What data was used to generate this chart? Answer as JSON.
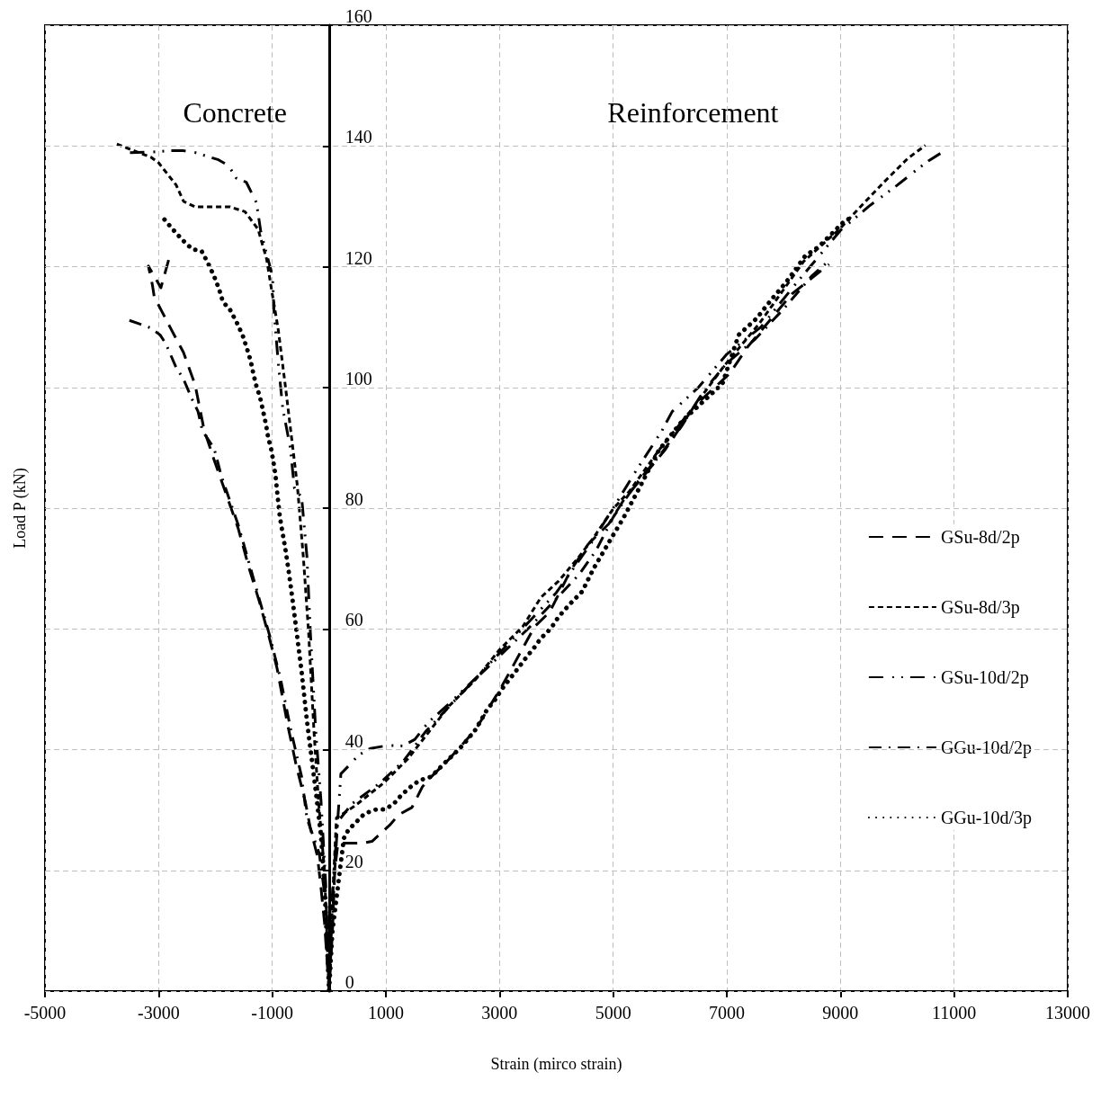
{
  "chart_data": {
    "type": "line",
    "xlabel": "Strain (mirco strain)",
    "ylabel": "Load P (kN)",
    "annotations": [
      "Concrete",
      "Reinforcement"
    ],
    "xlim": [
      -5000,
      13000
    ],
    "xticks": [
      -5000,
      -3000,
      -1000,
      1000,
      3000,
      5000,
      7000,
      9000,
      11000,
      13000
    ],
    "ylim": [
      0,
      160
    ],
    "yticks": [
      0,
      20,
      40,
      60,
      80,
      100,
      120,
      140,
      160
    ],
    "grid": true,
    "legend": "right",
    "marker": "none",
    "series": [
      {
        "name": "GSu-8d/2p",
        "color": "#000000",
        "line_style": "dashed",
        "x": [
          -2824,
          -2960,
          -3180,
          -3110,
          -3077,
          -2800,
          -2563,
          -2357,
          -2200,
          -2031,
          -1814,
          -1598,
          -1412,
          -1226,
          -1040,
          -916,
          -731,
          -576,
          -421,
          -328,
          -204,
          -142,
          -80,
          0,
          60,
          100,
          156,
          573,
          755,
          1068,
          1224,
          1458,
          1640,
          1745,
          2110,
          2578,
          3047,
          3620,
          3883,
          4247,
          4558,
          4922,
          5182,
          5909,
          6429,
          7052,
          7365,
          8148,
          8800
        ],
        "values": [
          121.1,
          116.5,
          120.1,
          117,
          115,
          110,
          105.8,
          100.4,
          93,
          88.2,
          82.4,
          76.6,
          70.2,
          64.5,
          58.1,
          53.5,
          44.2,
          37.3,
          31.5,
          26.9,
          22.3,
          17.1,
          11.3,
          0,
          10,
          20,
          24.5,
          24.5,
          24.8,
          27.5,
          29.2,
          30.4,
          33.8,
          35,
          38.4,
          43.3,
          50.6,
          60.4,
          62.8,
          69.6,
          74,
          77.4,
          81.3,
          89.6,
          96.9,
          102.3,
          106.7,
          115.5,
          120.4
        ]
      },
      {
        "name": "GSu-8d/3p",
        "color": "#000000",
        "line_style": "dashed",
        "x": [
          -3735,
          -3130,
          -3000,
          -2690,
          -2560,
          -2357,
          -1740,
          -1480,
          -1250,
          -1100,
          -1000,
          -895,
          -765,
          -557,
          -452,
          -359,
          -266,
          -186,
          -80,
          0,
          60,
          130,
          443,
          964,
          1380,
          1745,
          2110,
          2578,
          2995,
          3411,
          3727,
          4039,
          4403,
          4662,
          5000,
          5286,
          5805,
          6429,
          6948,
          7574,
          8356,
          8982,
          9400,
          9765,
          10182,
          10495
        ],
        "values": [
          140.3,
          138.1,
          137.2,
          133.5,
          130.8,
          129.9,
          129.9,
          129.1,
          126.2,
          121.3,
          115.5,
          109.6,
          99.9,
          83.6,
          71.8,
          59.2,
          43.1,
          31.5,
          19.9,
          0,
          15,
          28.7,
          30.6,
          34.5,
          38.4,
          42.8,
          47.2,
          51.6,
          56.5,
          60.4,
          65.2,
          67.9,
          72,
          75.2,
          79.9,
          82.8,
          89.6,
          96.9,
          103.5,
          110.6,
          120.9,
          126.2,
          130.4,
          134,
          137.9,
          140.1
        ]
      },
      {
        "name": "GSu-10d/2p",
        "color": "#000000",
        "line_style": "dashed",
        "x": [
          -3504,
          -3100,
          -2800,
          -2560,
          -2357,
          -1946,
          -1766,
          -1638,
          -1458,
          -1278,
          -1200,
          -995,
          -969,
          -892,
          -815,
          -686,
          -609,
          -483,
          -390,
          -328,
          -235,
          -142,
          -60,
          0,
          50,
          150,
          208,
          365,
          521,
          729,
          1042,
          1302,
          1510,
          1745,
          2100,
          2600,
          3000,
          3400,
          4000,
          4600,
          5000,
          5390,
          5857,
          6039,
          6500,
          7000,
          7600,
          8200,
          9000,
          9500,
          10000,
          10349,
          10547,
          10850
        ],
        "values": [
          138.9,
          139,
          139.2,
          139.2,
          138.9,
          137.7,
          136.7,
          134.7,
          134,
          130.6,
          125.7,
          118.4,
          112.6,
          103.8,
          96.5,
          90.2,
          83.3,
          81.8,
          72,
          59.2,
          43.1,
          31.5,
          18,
          0,
          15,
          28,
          36,
          37.5,
          39.1,
          40.2,
          40.7,
          40.6,
          41.7,
          44.5,
          47.5,
          52,
          56,
          60,
          66,
          74,
          80,
          86,
          92.8,
          96,
          100,
          105.5,
          110,
          117,
          126,
          130,
          133.5,
          136.1,
          137.5,
          139.3
        ]
      },
      {
        "name": "GGu-10d/2p",
        "color": "#000000",
        "line_style": "dashed",
        "x": [
          -3514,
          -3360,
          -3154,
          -2974,
          -2871,
          -2692,
          -2563,
          -2409,
          -2306,
          -2229,
          -2023,
          -1895,
          -1598,
          -1040,
          -854,
          -669,
          -483,
          -390,
          -173,
          -50,
          0,
          100,
          150,
          400,
          900,
          1300,
          1700,
          2100,
          2500,
          3000,
          3500,
          4000,
          4400,
          4700,
          5000,
          5400,
          5800,
          6200,
          6600,
          7000,
          7500,
          8000,
          8500,
          8800
        ],
        "values": [
          111.1,
          110.6,
          109.9,
          108.7,
          107.2,
          103.3,
          101.4,
          98,
          96,
          92.8,
          89.9,
          85.3,
          77.2,
          58.7,
          51.7,
          43.1,
          35.5,
          28.6,
          22.8,
          14.2,
          0,
          20,
          28,
          31,
          34.5,
          38,
          43,
          47,
          51,
          55.5,
          60,
          65,
          69,
          73,
          78.5,
          84,
          88.5,
          93.5,
          99.5,
          104,
          108,
          113,
          118.5,
          121
        ]
      },
      {
        "name": "GGu-10d/3p",
        "color": "#000000",
        "line_style": "dotted",
        "x": [
          -2897,
          -2743,
          -2578,
          -2409,
          -2244,
          -2126,
          -2023,
          -1936,
          -1869,
          -1740,
          -1622,
          -1524,
          -1447,
          -1380,
          -1329,
          -1278,
          -1216,
          -1164,
          -1113,
          -1072,
          -1021,
          -980,
          -943,
          -918,
          -867,
          -762,
          -700,
          -638,
          -545,
          -483,
          -390,
          -235,
          -142,
          -80,
          0,
          60,
          260,
          339,
          625,
          833,
          990,
          1146,
          1276,
          1432,
          1589,
          1797,
          2057,
          2214,
          2370,
          2578,
          2786,
          2917,
          3047,
          3255,
          3490,
          3620,
          3724,
          3906,
          4039,
          4247,
          4455,
          4662,
          4844,
          4948,
          5182,
          5442,
          5805,
          6221,
          6922,
          7209,
          7522,
          7782,
          8043,
          8382,
          8617,
          9086,
          9243
        ],
        "values": [
          127.8,
          126.1,
          124.4,
          122.9,
          122.6,
          120.5,
          118.4,
          116.3,
          114.2,
          112.8,
          110.7,
          108.7,
          106.5,
          104.4,
          102.1,
          100.2,
          98.4,
          96.2,
          94,
          91.7,
          89.9,
          87.7,
          85.4,
          83.1,
          78.6,
          72.8,
          68.8,
          64.5,
          57.5,
          52.9,
          44.8,
          33.2,
          25.7,
          17.1,
          0,
          10,
          25.3,
          26.7,
          29.4,
          30.1,
          30.1,
          31.1,
          32.5,
          33.8,
          34.9,
          35.5,
          38,
          39.4,
          40.9,
          43.3,
          46.7,
          48.2,
          50.1,
          52.6,
          55.5,
          57,
          58.4,
          60.1,
          62,
          64.2,
          66.2,
          70.1,
          73,
          74.7,
          78.4,
          83,
          89.6,
          94.5,
          100.6,
          108.7,
          111.4,
          114.5,
          117.4,
          121.8,
          123.3,
          127.7,
          128.2
        ]
      }
    ]
  }
}
